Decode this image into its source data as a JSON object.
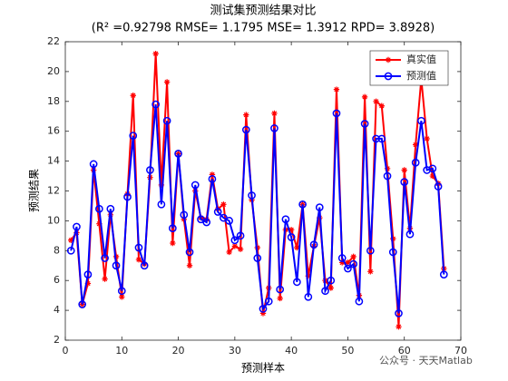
{
  "chart_data": {
    "type": "line",
    "title": "测试集预测结果对比",
    "subtitle": "(R² =0.92798 RMSE= 1.1795 MSE= 1.3912 RPD= 3.8928)",
    "x_label": "预测样本",
    "y_label": "预测结果",
    "annotation": "公众号 · 天天Matlab",
    "x": [
      1,
      2,
      3,
      4,
      5,
      6,
      7,
      8,
      9,
      10,
      11,
      12,
      13,
      14,
      15,
      16,
      17,
      18,
      19,
      20,
      21,
      22,
      23,
      24,
      25,
      26,
      27,
      28,
      29,
      30,
      31,
      32,
      33,
      34,
      35,
      36,
      37,
      38,
      39,
      40,
      41,
      42,
      43,
      44,
      45,
      46,
      47,
      48,
      49,
      50,
      51,
      52,
      53,
      54,
      55,
      56,
      57,
      58,
      59,
      60,
      61,
      62,
      63,
      64,
      65,
      66,
      67
    ],
    "series": [
      {
        "name": "真实值",
        "color": "#ff0000",
        "marker": "asterisk",
        "values": [
          8.7,
          9.2,
          4.4,
          5.8,
          13.4,
          9.8,
          6.1,
          10.4,
          7.6,
          4.9,
          11.8,
          18.4,
          7.4,
          7.1,
          12.9,
          21.2,
          12.4,
          19.3,
          8.5,
          14.5,
          10.1,
          7.0,
          12.0,
          10.2,
          10.1,
          13.1,
          10.8,
          11.1,
          7.9,
          8.3,
          8.1,
          17.1,
          11.4,
          8.2,
          3.8,
          5.5,
          17.2,
          4.8,
          9.4,
          9.4,
          8.2,
          11.1,
          6.3,
          8.3,
          10.2,
          6.0,
          5.5,
          18.8,
          7.2,
          7.2,
          7.6,
          5.0,
          18.3,
          6.6,
          18.0,
          17.7,
          13.5,
          8.8,
          2.9,
          13.4,
          9.5,
          15.1,
          19.5,
          15.5,
          13.0,
          12.5,
          6.8
        ]
      },
      {
        "name": "预测值",
        "color": "#0000ff",
        "marker": "circle",
        "values": [
          8.0,
          9.6,
          4.4,
          6.4,
          13.8,
          10.8,
          7.5,
          10.8,
          7.0,
          5.3,
          11.6,
          15.7,
          8.2,
          7.0,
          13.4,
          17.8,
          11.1,
          16.7,
          9.5,
          14.5,
          10.4,
          7.9,
          12.4,
          10.1,
          9.9,
          12.8,
          10.6,
          10.2,
          10.0,
          8.7,
          9.0,
          16.1,
          11.7,
          7.5,
          4.1,
          4.6,
          16.2,
          5.4,
          10.1,
          8.9,
          5.9,
          11.1,
          4.9,
          8.4,
          10.9,
          5.3,
          6.0,
          17.2,
          7.5,
          6.8,
          7.1,
          4.6,
          16.5,
          8.0,
          15.5,
          15.5,
          13.0,
          7.9,
          3.8,
          12.6,
          9.1,
          13.9,
          16.7,
          13.4,
          13.5,
          12.3,
          6.4
        ]
      }
    ],
    "xlim": [
      0,
      70
    ],
    "xticks": [
      0,
      10,
      20,
      30,
      40,
      50,
      60,
      70
    ],
    "ylim": [
      2,
      22
    ],
    "yticks": [
      2,
      4,
      6,
      8,
      10,
      12,
      14,
      16,
      18,
      20,
      22
    ],
    "legend": "northeast",
    "grid": false
  }
}
